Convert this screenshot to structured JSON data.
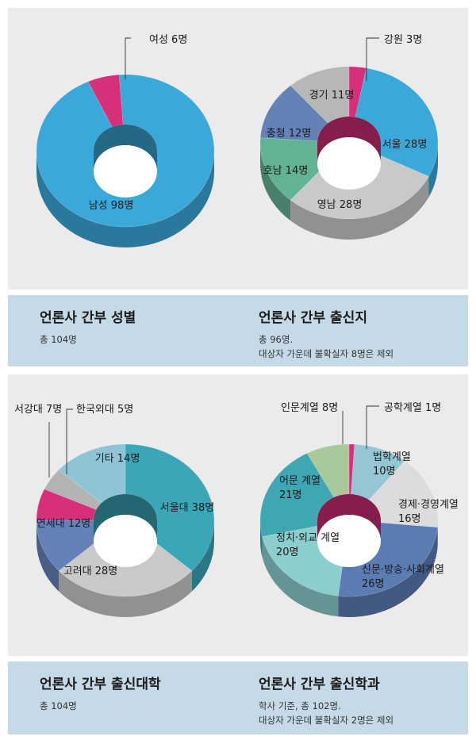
{
  "chart_data": [
    {
      "type": "pie",
      "title": "언론사 간부 성별",
      "notes": [
        "총 104명"
      ],
      "slices": [
        {
          "label": "남성 98명",
          "value": 98,
          "color": "#3aa8d8"
        },
        {
          "label": "여성 6명",
          "value": 6,
          "color": "#d7307b"
        }
      ]
    },
    {
      "type": "pie",
      "title": "언론사 간부 출신지",
      "notes": [
        "총 96명.",
        "대상자 가운데 불확실자 8명은 제외"
      ],
      "slices": [
        {
          "label": "강원 3명",
          "value": 3,
          "color": "#d7307b"
        },
        {
          "label": "서울 28명",
          "value": 28,
          "color": "#3aa8d8"
        },
        {
          "label": "영남 28명",
          "value": 28,
          "color": "#c9c9c9"
        },
        {
          "label": "호남 14명",
          "value": 14,
          "color": "#62b294"
        },
        {
          "label": "충청 12명",
          "value": 12,
          "color": "#6482b8"
        },
        {
          "label": "경기 11명",
          "value": 11,
          "color": "#b7b7b7"
        }
      ]
    },
    {
      "type": "pie",
      "title": "언론사 간부 출신대학",
      "notes": [
        "총 104명"
      ],
      "slices": [
        {
          "label": "서울대 38명",
          "value": 38,
          "color": "#3aa6b6"
        },
        {
          "label": "고려대 28명",
          "value": 28,
          "color": "#c9c9c9"
        },
        {
          "label": "연세대 12명",
          "value": 12,
          "color": "#6482b8"
        },
        {
          "label": "서강대 7명",
          "value": 7,
          "color": "#d7307b"
        },
        {
          "label": "한국외대 5명",
          "value": 5,
          "color": "#b3b3b3"
        },
        {
          "label": "기타 14명",
          "value": 14,
          "color": "#8fc3d6"
        }
      ]
    },
    {
      "type": "pie",
      "title": "언론사 간부 출신학과",
      "notes": [
        "학사 기준, 총 102명.",
        "대상자 가운데 불확실자 2명은 제외"
      ],
      "slices": [
        {
          "label": "공학계열 1명",
          "value": 1,
          "color": "#d7307b"
        },
        {
          "label": "법학계열 10명",
          "value": 10,
          "color": "#95c6d3"
        },
        {
          "label": "경제·경영계열 16명",
          "value": 16,
          "color": "#dcdcdc"
        },
        {
          "label": "신문·방송·사회계열 26명",
          "value": 26,
          "color": "#5b7bb3"
        },
        {
          "label": "정치·외교 계열 20명",
          "value": 20,
          "color": "#8ccdcd"
        },
        {
          "label": "어문 계열 21명",
          "value": 21,
          "color": "#3fa7b3"
        },
        {
          "label": "인문계열 8명",
          "value": 8,
          "color": "#a8c99a"
        }
      ]
    }
  ]
}
